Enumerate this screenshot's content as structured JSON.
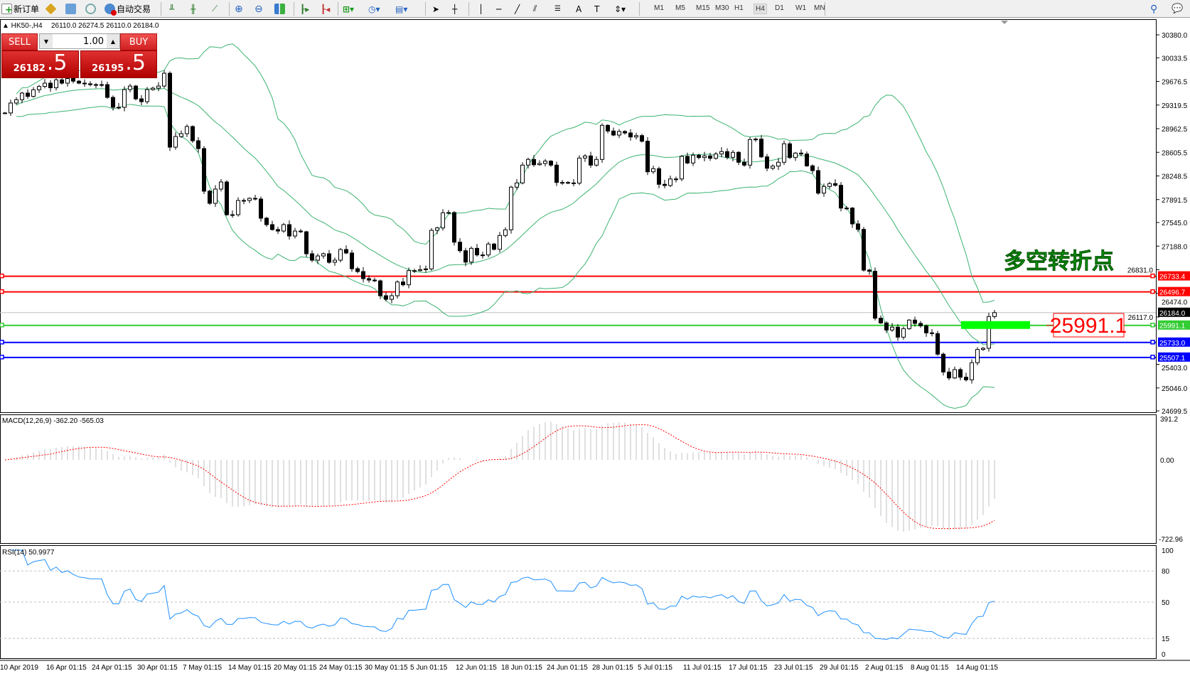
{
  "toolbar": {
    "new_order": "新订单",
    "auto_trading": "自动交易",
    "icons": [
      "new-order-icon",
      "market-watch-icon",
      "navigator-icon",
      "signals-icon",
      "auto-trading-icon",
      "bar-chart-icon",
      "candlestick-icon",
      "line-chart-icon",
      "zoom-in-icon",
      "zoom-out-icon",
      "tile-windows-icon",
      "auto-scroll-icon",
      "chart-shift-icon",
      "indicators-icon",
      "periods-icon",
      "templates-icon",
      "cursor-icon",
      "crosshair-icon",
      "vertical-line-icon",
      "horizontal-line-icon",
      "trendline-icon",
      "equidistant-channel-icon",
      "fibonacci-icon",
      "text-icon",
      "text-label-icon",
      "arrows-icon"
    ],
    "timeframes": [
      "M1",
      "M5",
      "M15",
      "M30",
      "H1",
      "H4",
      "D1",
      "W1",
      "MN"
    ],
    "active_timeframe": "H4"
  },
  "chart_header": {
    "symbol": "▲ HK50-,H4",
    "ohlc": "26110.0 26274.5 26110.0 26184.0"
  },
  "trade_panel": {
    "sell_label": "SELL",
    "buy_label": "BUY",
    "lot": "1.00",
    "sell_main": "26182",
    "sell_big": ".5",
    "buy_main": "26195",
    "buy_big": ".5"
  },
  "price_axis": {
    "ticks": [
      "30380.0",
      "30033.5",
      "29676.5",
      "29319.5",
      "28962.5",
      "28605.5",
      "28248.5",
      "27891.5",
      "27545.0",
      "27188.0",
      "26831.0",
      "26474.0",
      "26117.0",
      "25403.0",
      "25046.0",
      "24699.5"
    ]
  },
  "hlines": [
    {
      "price": "26733.4",
      "color": "#ff0000"
    },
    {
      "price": "26496.7",
      "color": "#ff0000"
    },
    {
      "price": "25991.1",
      "color": "#32cd32"
    },
    {
      "price": "25733.0",
      "color": "#0000ff"
    },
    {
      "price": "25507.1",
      "color": "#0000ff"
    }
  ],
  "current_price": {
    "value": "26184.0",
    "color": "#000000"
  },
  "annotation": {
    "title": "多空转折点",
    "price_box": "25991.1",
    "text_color": "#00cc00",
    "box_color": "#ff0000",
    "zone_color": "#00ff00"
  },
  "macd": {
    "label": "MACD(12,26,9) -362.20 -565.03",
    "scale_top": "391.2",
    "scale_zero": "0.00",
    "scale_bottom": "-722.96"
  },
  "rsi": {
    "label": "RSI(14) 50.9977",
    "levels": [
      "100",
      "80",
      "50",
      "15",
      "0"
    ]
  },
  "x_axis": {
    "labels": [
      "10 Apr 2019",
      "16 Apr 01:15",
      "24 Apr 01:15",
      "30 Apr 01:15",
      "7 May 01:15",
      "14 May 01:15",
      "20 May 01:15",
      "24 May 01:15",
      "30 May 01:15",
      "5 Jun 01:15",
      "12 Jun 01:15",
      "18 Jun 01:15",
      "24 Jun 01:15",
      "28 Jun 01:15",
      "5 Jul 01:15",
      "11 Jul 01:15",
      "17 Jul 01:15",
      "23 Jul 01:15",
      "29 Jul 01:15",
      "2 Aug 01:15",
      "8 Aug 01:15",
      "14 Aug 01:15"
    ]
  },
  "chart_data": {
    "type": "candlestick",
    "symbol": "HK50-",
    "timeframe": "H4",
    "ylim": [
      24699.5,
      30380.0
    ],
    "indicators": [
      "Bollinger Bands",
      "MACD(12,26,9)",
      "RSI(14)"
    ],
    "close": [
      29200,
      29350,
      29400,
      29500,
      29450,
      29550,
      29600,
      29650,
      29580,
      29700,
      29650,
      29720,
      29680,
      29650,
      29640,
      29628,
      29628,
      29628,
      29435,
      29285,
      29285,
      29553,
      29606,
      29413,
      29370,
      29553,
      29574,
      29606,
      29800,
      28683,
      28844,
      28887,
      28995,
      28780,
      28662,
      28018,
      27835,
      28050,
      28157,
      27663,
      27663,
      27878,
      27878,
      27910,
      27900,
      27610,
      27513,
      27438,
      27416,
      27513,
      27341,
      27416,
      27405,
      27073,
      26976,
      27040,
      27073,
      26944,
      26976,
      27137,
      27084,
      26847,
      26804,
      26697,
      26675,
      26664,
      26439,
      26385,
      26439,
      26647,
      26604,
      26818,
      26818,
      26833,
      26844,
      27427,
      27463,
      27692,
      27695,
      27248,
      27119,
      26947,
      27155,
      27055,
      27055,
      27220,
      27140,
      27349,
      27435,
      28079,
      28143,
      28412,
      28498,
      28418,
      28437,
      28472,
      28412,
      28150,
      28150,
      28143,
      28140,
      28519,
      28551,
      28412,
      28498,
      29013,
      28927,
      28866,
      28920,
      28898,
      28837,
      28858,
      28773,
      28311,
      28358,
      28122,
      28104,
      28203,
      28203,
      28544,
      28444,
      28562,
      28526,
      28551,
      28515,
      28580,
      28616,
      28530,
      28605,
      28455,
      28412,
      28798,
      28805,
      28537,
      28365,
      28397,
      28455,
      28734,
      28526,
      28594,
      28580,
      28401,
      28329,
      27989,
      28090,
      28133,
      28107,
      27763,
      27763,
      27524,
      27441,
      26826,
      26808,
      26099,
      26028,
      25921,
      25964,
      25813,
      25942,
      26071,
      26021,
      25985,
      25878,
      25867,
      25556,
      25287,
      25197,
      25323,
      25208,
      25169,
      25427,
      25627,
      25645,
      26124,
      26184
    ],
    "colors": {
      "bands": "#3cb371",
      "macd_hist": "#c0c0c0",
      "macd_signal": "#ff0000",
      "rsi": "#1e90ff"
    }
  }
}
